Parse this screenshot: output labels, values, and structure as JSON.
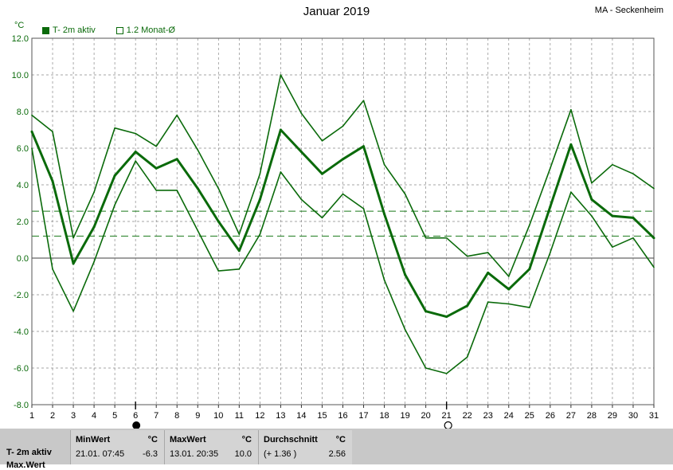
{
  "header": {
    "title": "Januar 2019",
    "station": "MA - Seckenheim",
    "unit": "°C"
  },
  "legend": [
    {
      "label": "T- 2m aktiv",
      "filled": true
    },
    {
      "label": "1.2 Monat-Ø",
      "filled": false
    }
  ],
  "colors": {
    "series": "#0a6a0a",
    "grid": "#888888",
    "reference": "#1a7a1a"
  },
  "chart_data": {
    "type": "line",
    "x": [
      1,
      2,
      3,
      4,
      5,
      6,
      7,
      8,
      9,
      10,
      11,
      12,
      13,
      14,
      15,
      16,
      17,
      18,
      19,
      20,
      21,
      22,
      23,
      24,
      25,
      26,
      27,
      28,
      29,
      30,
      31
    ],
    "ylim": [
      -8.0,
      12.0
    ],
    "yticks": [
      "12.0",
      "10.0",
      "8.0",
      "6.0",
      "4.0",
      "2.0",
      "0.0",
      "-2.0",
      "-4.0",
      "-6.0",
      "-8.0"
    ],
    "xticks": [
      "1",
      "2",
      "3",
      "4",
      "5",
      "6",
      "7",
      "8",
      "9",
      "10",
      "11",
      "12",
      "13",
      "14",
      "15",
      "16",
      "17",
      "18",
      "19",
      "20",
      "21",
      "22",
      "23",
      "24",
      "25",
      "26",
      "27",
      "28",
      "29",
      "30",
      "31"
    ],
    "series": [
      {
        "role": "max",
        "values": [
          7.8,
          6.9,
          1.1,
          3.6,
          7.1,
          6.8,
          6.1,
          7.8,
          5.9,
          3.8,
          1.3,
          4.6,
          10.0,
          7.9,
          6.4,
          7.2,
          8.6,
          5.1,
          3.5,
          1.1,
          1.1,
          0.1,
          0.3,
          -1.0,
          1.8,
          4.9,
          8.1,
          4.1,
          5.1,
          4.6,
          3.8
        ]
      },
      {
        "role": "mean",
        "values": [
          6.9,
          4.2,
          -0.3,
          1.7,
          4.5,
          5.8,
          4.9,
          5.4,
          3.8,
          2.0,
          0.4,
          3.2,
          7.0,
          5.8,
          4.6,
          5.4,
          6.1,
          2.4,
          -0.9,
          -2.9,
          -3.2,
          -2.6,
          -0.8,
          -1.7,
          -0.6,
          2.8,
          6.2,
          3.2,
          2.3,
          2.2,
          1.1
        ]
      },
      {
        "role": "min",
        "values": [
          6.0,
          -0.6,
          -2.9,
          -0.2,
          2.9,
          5.3,
          3.7,
          3.7,
          1.5,
          -0.7,
          -0.6,
          1.3,
          4.7,
          3.2,
          2.2,
          3.5,
          2.7,
          -1.2,
          -3.9,
          -6.0,
          -6.3,
          -5.4,
          -2.4,
          -2.5,
          -2.7,
          0.3,
          3.6,
          2.3,
          0.6,
          1.1,
          -0.5
        ]
      }
    ],
    "reference_lines": [
      2.56,
      1.2
    ],
    "moon_phases": [
      {
        "day": 6,
        "phase": "new"
      },
      {
        "day": 21,
        "phase": "full"
      }
    ],
    "grid": true
  },
  "stats": {
    "row_label": "T- 2m aktiv",
    "row_label2": "Max.Wert",
    "min": {
      "header": "MinWert",
      "unit": "°C",
      "datetime": "21.01.  07:45",
      "value": "-6.3"
    },
    "max": {
      "header": "MaxWert",
      "unit": "°C",
      "datetime": "13.01.  20:35",
      "value": "10.0"
    },
    "avg": {
      "header": "Durchschnitt",
      "unit": "°C",
      "delta": "(+ 1.36 )",
      "value": "2.56"
    }
  }
}
